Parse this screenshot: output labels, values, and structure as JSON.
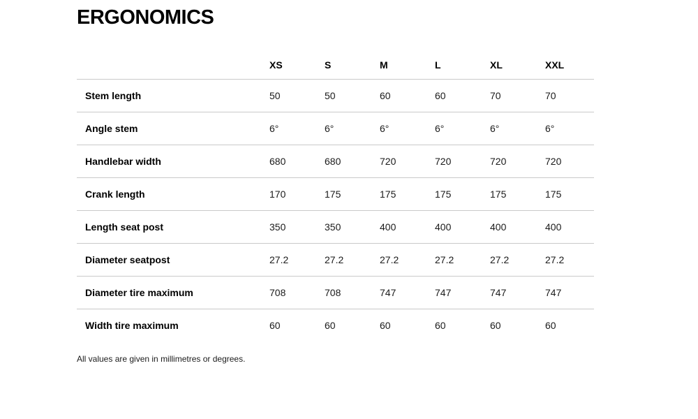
{
  "page": {
    "title": "ERGONOMICS",
    "footnote": "All values are given in millimetres or degrees."
  },
  "table": {
    "columns": [
      "XS",
      "S",
      "M",
      "L",
      "XL",
      "XXL"
    ],
    "rows": [
      {
        "label": "Stem length",
        "values": [
          "50",
          "50",
          "60",
          "60",
          "70",
          "70"
        ]
      },
      {
        "label": "Angle stem",
        "values": [
          "6°",
          "6°",
          "6°",
          "6°",
          "6°",
          "6°"
        ]
      },
      {
        "label": "Handlebar width",
        "values": [
          "680",
          "680",
          "720",
          "720",
          "720",
          "720"
        ]
      },
      {
        "label": "Crank length",
        "values": [
          "170",
          "175",
          "175",
          "175",
          "175",
          "175"
        ]
      },
      {
        "label": "Length seat post",
        "values": [
          "350",
          "350",
          "400",
          "400",
          "400",
          "400"
        ]
      },
      {
        "label": "Diameter seatpost",
        "values": [
          "27.2",
          "27.2",
          "27.2",
          "27.2",
          "27.2",
          "27.2"
        ]
      },
      {
        "label": "Diameter tire maximum",
        "values": [
          "708",
          "708",
          "747",
          "747",
          "747",
          "747"
        ]
      },
      {
        "label": "Width tire maximum",
        "values": [
          "60",
          "60",
          "60",
          "60",
          "60",
          "60"
        ]
      }
    ]
  },
  "colors": {
    "text": "#1a1a1a",
    "heading": "#000000",
    "border": "#c9c9c9",
    "background": "#ffffff"
  }
}
